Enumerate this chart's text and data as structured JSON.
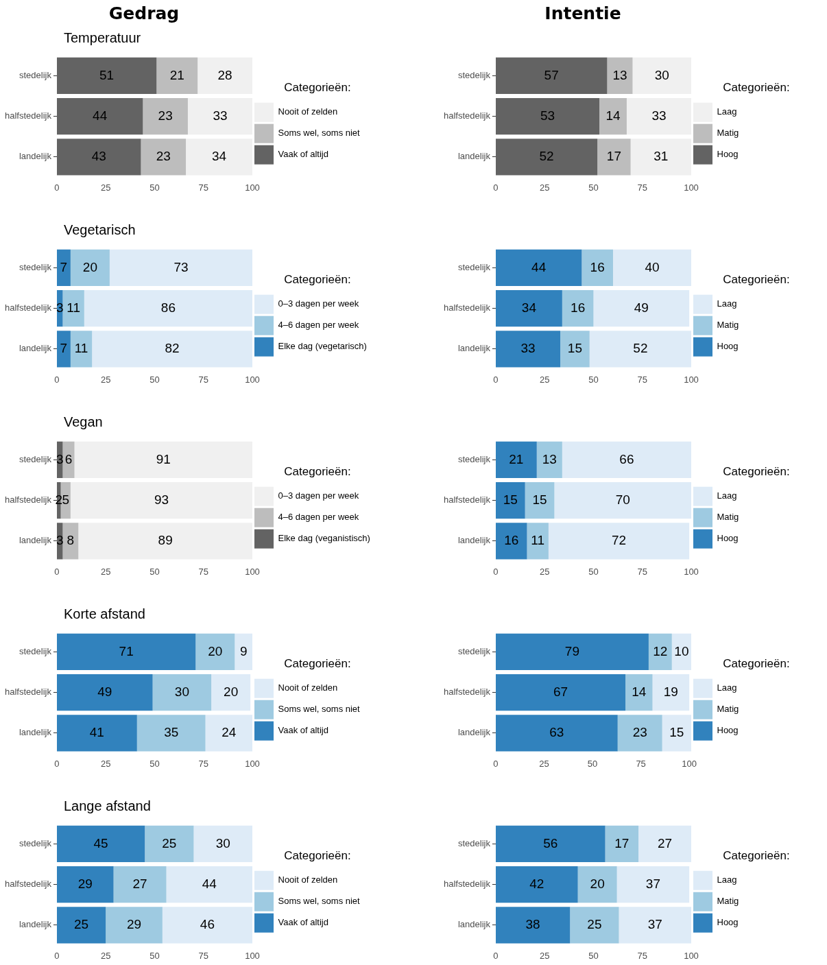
{
  "chart_data": [
    {
      "type": "bar",
      "orientation": "horizontal",
      "stacked": true,
      "title": "Temperatuur",
      "annotations": [
        "Gedrag"
      ],
      "legend_title": "Categorieën:",
      "legend": "right",
      "data_labels": true,
      "grid": false,
      "xlim": [
        0,
        100
      ],
      "xticks": [
        0,
        25,
        50,
        75,
        100
      ],
      "categories": [
        "stedelijk",
        "halfstedelijk",
        "landelijk"
      ],
      "series": [
        {
          "name": "Vaak of altijd",
          "color": "#636363",
          "values": [
            51,
            44,
            43
          ]
        },
        {
          "name": "Soms wel, soms niet",
          "color": "#bdbdbd",
          "values": [
            21,
            23,
            23
          ]
        },
        {
          "name": "Nooit of zelden",
          "color": "#f0f0f0",
          "values": [
            28,
            33,
            34
          ]
        }
      ]
    },
    {
      "type": "bar",
      "orientation": "horizontal",
      "stacked": true,
      "annotations": [
        "Intentie"
      ],
      "legend_title": "Categorieën:",
      "legend": "right",
      "data_labels": true,
      "grid": false,
      "xlim": [
        0,
        100
      ],
      "xticks": [
        0,
        25,
        50,
        75,
        100
      ],
      "categories": [
        "stedelijk",
        "halfstedelijk",
        "landelijk"
      ],
      "series": [
        {
          "name": "Hoog",
          "color": "#636363",
          "values": [
            57,
            53,
            52
          ]
        },
        {
          "name": "Matig",
          "color": "#bdbdbd",
          "values": [
            13,
            14,
            17
          ]
        },
        {
          "name": "Laag",
          "color": "#f0f0f0",
          "values": [
            30,
            33,
            31
          ]
        }
      ]
    },
    {
      "type": "bar",
      "orientation": "horizontal",
      "stacked": true,
      "title": "Vegetarisch",
      "legend_title": "Categorieën:",
      "legend": "right",
      "data_labels": true,
      "grid": false,
      "xlim": [
        0,
        100
      ],
      "xticks": [
        0,
        25,
        50,
        75,
        100
      ],
      "categories": [
        "stedelijk",
        "halfstedelijk",
        "landelijk"
      ],
      "series": [
        {
          "name": "Elke dag (vegetarisch)",
          "color": "#3182bd",
          "values": [
            7,
            3,
            7
          ]
        },
        {
          "name": "4–6 dagen per week",
          "color": "#9ecae1",
          "values": [
            20,
            11,
            11
          ]
        },
        {
          "name": "0–3 dagen per week",
          "color": "#deebf7",
          "values": [
            73,
            86,
            82
          ]
        }
      ]
    },
    {
      "type": "bar",
      "orientation": "horizontal",
      "stacked": true,
      "legend_title": "Categorieën:",
      "legend": "right",
      "data_labels": true,
      "grid": false,
      "xlim": [
        0,
        100
      ],
      "xticks": [
        0,
        25,
        50,
        75,
        100
      ],
      "categories": [
        "stedelijk",
        "halfstedelijk",
        "landelijk"
      ],
      "series": [
        {
          "name": "Hoog",
          "color": "#3182bd",
          "values": [
            44,
            34,
            33
          ]
        },
        {
          "name": "Matig",
          "color": "#9ecae1",
          "values": [
            16,
            16,
            15
          ]
        },
        {
          "name": "Laag",
          "color": "#deebf7",
          "values": [
            40,
            49,
            52
          ]
        }
      ]
    },
    {
      "type": "bar",
      "orientation": "horizontal",
      "stacked": true,
      "title": "Vegan",
      "legend_title": "Categorieën:",
      "legend": "right",
      "data_labels": true,
      "grid": false,
      "xlim": [
        0,
        100
      ],
      "xticks": [
        0,
        25,
        50,
        75,
        100
      ],
      "categories": [
        "stedelijk",
        "halfstedelijk",
        "landelijk"
      ],
      "series": [
        {
          "name": "Elke dag (veganistisch)",
          "color": "#636363",
          "values": [
            3,
            2,
            3
          ]
        },
        {
          "name": "4–6 dagen per week",
          "color": "#bdbdbd",
          "values": [
            6,
            5,
            8
          ]
        },
        {
          "name": "0–3 dagen per week",
          "color": "#f0f0f0",
          "values": [
            91,
            93,
            89
          ]
        }
      ]
    },
    {
      "type": "bar",
      "orientation": "horizontal",
      "stacked": true,
      "legend_title": "Categorieën:",
      "legend": "right",
      "data_labels": true,
      "grid": false,
      "xlim": [
        0,
        100
      ],
      "xticks": [
        0,
        25,
        50,
        75,
        100
      ],
      "categories": [
        "stedelijk",
        "halfstedelijk",
        "landelijk"
      ],
      "series": [
        {
          "name": "Hoog",
          "color": "#3182bd",
          "values": [
            21,
            15,
            16
          ]
        },
        {
          "name": "Matig",
          "color": "#9ecae1",
          "values": [
            13,
            15,
            11
          ]
        },
        {
          "name": "Laag",
          "color": "#deebf7",
          "values": [
            66,
            70,
            72
          ]
        }
      ]
    },
    {
      "type": "bar",
      "orientation": "horizontal",
      "stacked": true,
      "title": "Korte afstand",
      "legend_title": "Categorieën:",
      "legend": "right",
      "data_labels": true,
      "grid": false,
      "xlim": [
        0,
        100
      ],
      "xticks": [
        0,
        25,
        50,
        75,
        100
      ],
      "categories": [
        "stedelijk",
        "halfstedelijk",
        "landelijk"
      ],
      "series": [
        {
          "name": "Vaak of altijd",
          "color": "#3182bd",
          "values": [
            71,
            49,
            41
          ]
        },
        {
          "name": "Soms wel, soms niet",
          "color": "#9ecae1",
          "values": [
            20,
            30,
            35
          ]
        },
        {
          "name": "Nooit of zelden",
          "color": "#deebf7",
          "values": [
            9,
            20,
            24
          ]
        }
      ]
    },
    {
      "type": "bar",
      "orientation": "horizontal",
      "stacked": true,
      "legend_title": "Categorieën:",
      "legend": "right",
      "data_labels": true,
      "grid": false,
      "xlim": [
        0,
        101
      ],
      "xticks": [
        0,
        25,
        50,
        75,
        100
      ],
      "categories": [
        "stedelijk",
        "halfstedelijk",
        "landelijk"
      ],
      "series": [
        {
          "name": "Hoog",
          "color": "#3182bd",
          "values": [
            79,
            67,
            63
          ]
        },
        {
          "name": "Matig",
          "color": "#9ecae1",
          "values": [
            12,
            14,
            23
          ]
        },
        {
          "name": "Laag",
          "color": "#deebf7",
          "values": [
            10,
            19,
            15
          ]
        }
      ]
    },
    {
      "type": "bar",
      "orientation": "horizontal",
      "stacked": true,
      "title": "Lange afstand",
      "legend_title": "Categorieën:",
      "legend": "right",
      "data_labels": true,
      "grid": false,
      "xlim": [
        0,
        100
      ],
      "xticks": [
        0,
        25,
        50,
        75,
        100
      ],
      "categories": [
        "stedelijk",
        "halfstedelijk",
        "landelijk"
      ],
      "series": [
        {
          "name": "Vaak of altijd",
          "color": "#3182bd",
          "values": [
            45,
            29,
            25
          ]
        },
        {
          "name": "Soms wel, soms niet",
          "color": "#9ecae1",
          "values": [
            25,
            27,
            29
          ]
        },
        {
          "name": "Nooit of zelden",
          "color": "#deebf7",
          "values": [
            30,
            44,
            46
          ]
        }
      ]
    },
    {
      "type": "bar",
      "orientation": "horizontal",
      "stacked": true,
      "legend_title": "Categorieën:",
      "legend": "right",
      "data_labels": true,
      "grid": false,
      "xlim": [
        0,
        100
      ],
      "xticks": [
        0,
        25,
        50,
        75,
        100
      ],
      "categories": [
        "stedelijk",
        "halfstedelijk",
        "landelijk"
      ],
      "series": [
        {
          "name": "Hoog",
          "color": "#3182bd",
          "values": [
            56,
            42,
            38
          ]
        },
        {
          "name": "Matig",
          "color": "#9ecae1",
          "values": [
            17,
            20,
            25
          ]
        },
        {
          "name": "Laag",
          "color": "#deebf7",
          "values": [
            27,
            37,
            37
          ]
        }
      ]
    }
  ]
}
